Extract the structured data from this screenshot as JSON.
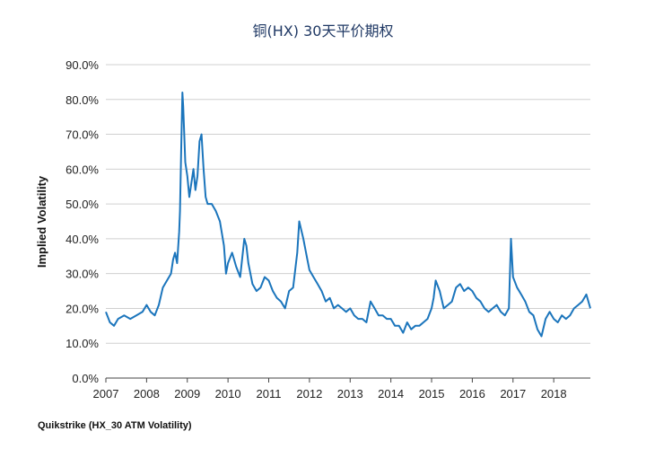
{
  "chart_data": {
    "type": "line",
    "title": "铜(HX) 30天平价期权",
    "xlabel": "",
    "ylabel": "Implied Volatility",
    "source": "Quikstrike (HX_30 ATM Volatility)",
    "xlim": [
      2007,
      2018.9
    ],
    "ylim": [
      0,
      90
    ],
    "x_ticks": [
      "2007",
      "2008",
      "2009",
      "2010",
      "2011",
      "2012",
      "2013",
      "2014",
      "2015",
      "2016",
      "2017",
      "2018"
    ],
    "y_ticks": [
      "0.0%",
      "10.0%",
      "20.0%",
      "30.0%",
      "40.0%",
      "50.0%",
      "60.0%",
      "70.0%",
      "80.0%",
      "90.0%"
    ],
    "grid": true,
    "legend": "none",
    "colors": {
      "line": "#1b75bc",
      "grid": "#d0d0d0",
      "title": "#1f3864"
    },
    "series": [
      {
        "x": [
          2007.0,
          2007.1,
          2007.2,
          2007.3,
          2007.45,
          2007.6,
          2007.75,
          2007.9,
          2008.0,
          2008.1,
          2008.2,
          2008.3,
          2008.4,
          2008.5,
          2008.6,
          2008.65,
          2008.7,
          2008.75,
          2008.8,
          2008.82,
          2008.85,
          2008.88,
          2008.9,
          2008.95,
          2009.0,
          2009.05,
          2009.1,
          2009.15,
          2009.2,
          2009.25,
          2009.3,
          2009.35,
          2009.4,
          2009.45,
          2009.5,
          2009.6,
          2009.7,
          2009.8,
          2009.9,
          2009.95,
          2010.0,
          2010.1,
          2010.2,
          2010.3,
          2010.4,
          2010.45,
          2010.5,
          2010.6,
          2010.7,
          2010.8,
          2010.9,
          2011.0,
          2011.1,
          2011.2,
          2011.3,
          2011.4,
          2011.5,
          2011.6,
          2011.7,
          2011.75,
          2011.85,
          2011.95,
          2012.0,
          2012.1,
          2012.2,
          2012.3,
          2012.4,
          2012.5,
          2012.6,
          2012.7,
          2012.8,
          2012.9,
          2013.0,
          2013.1,
          2013.2,
          2013.3,
          2013.4,
          2013.5,
          2013.6,
          2013.7,
          2013.8,
          2013.9,
          2014.0,
          2014.1,
          2014.2,
          2014.3,
          2014.4,
          2014.5,
          2014.6,
          2014.7,
          2014.8,
          2014.9,
          2015.0,
          2015.05,
          2015.1,
          2015.2,
          2015.3,
          2015.4,
          2015.5,
          2015.6,
          2015.7,
          2015.8,
          2015.9,
          2016.0,
          2016.1,
          2016.2,
          2016.3,
          2016.4,
          2016.5,
          2016.6,
          2016.7,
          2016.8,
          2016.9,
          2016.95,
          2017.0,
          2017.1,
          2017.2,
          2017.3,
          2017.4,
          2017.5,
          2017.6,
          2017.7,
          2017.8,
          2017.9,
          2018.0,
          2018.1,
          2018.2,
          2018.3,
          2018.4,
          2018.5,
          2018.6,
          2018.7,
          2018.8,
          2018.9
        ],
        "values": [
          19,
          16,
          15,
          17,
          18,
          17,
          18,
          19,
          21,
          19,
          18,
          21,
          26,
          28,
          30,
          34,
          36,
          33,
          42,
          48,
          65,
          82,
          78,
          62,
          58,
          52,
          56,
          60,
          54,
          58,
          68,
          70,
          60,
          52,
          50,
          50,
          48,
          45,
          38,
          30,
          33,
          36,
          32,
          29,
          40,
          38,
          33,
          27,
          25,
          26,
          29,
          28,
          25,
          23,
          22,
          20,
          25,
          26,
          36,
          45,
          40,
          34,
          31,
          29,
          27,
          25,
          22,
          23,
          20,
          21,
          20,
          19,
          20,
          18,
          17,
          17,
          16,
          22,
          20,
          18,
          18,
          17,
          17,
          15,
          15,
          13,
          16,
          14,
          15,
          15,
          16,
          17,
          20,
          23,
          28,
          25,
          20,
          21,
          22,
          26,
          27,
          25,
          26,
          25,
          23,
          22,
          20,
          19,
          20,
          21,
          19,
          18,
          20,
          40,
          29,
          26,
          24,
          22,
          19,
          18,
          14,
          12,
          17,
          19,
          17,
          16,
          18,
          17,
          18,
          20,
          21,
          22,
          24,
          20
        ]
      }
    ]
  }
}
